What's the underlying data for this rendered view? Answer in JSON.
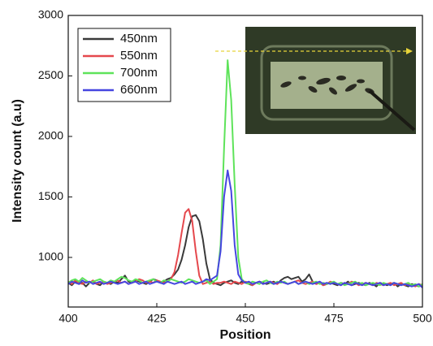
{
  "chart_data": {
    "type": "line",
    "x_label": "Position",
    "y_label": "Intensity count (a.u)",
    "xlim": [
      400,
      500
    ],
    "ylim": [
      590,
      3000
    ],
    "xticks": [
      400,
      425,
      450,
      475,
      500
    ],
    "yticks": [
      1000,
      1500,
      2000,
      2500,
      3000
    ],
    "grid": false,
    "legend": "upper left",
    "x": [
      400,
      401,
      402,
      403,
      404,
      405,
      406,
      407,
      408,
      409,
      410,
      411,
      412,
      413,
      414,
      415,
      416,
      417,
      418,
      419,
      420,
      421,
      422,
      423,
      424,
      425,
      426,
      427,
      428,
      429,
      430,
      431,
      432,
      433,
      434,
      435,
      436,
      437,
      438,
      439,
      440,
      441,
      442,
      443,
      444,
      445,
      446,
      447,
      448,
      449,
      450,
      451,
      452,
      453,
      454,
      455,
      456,
      457,
      458,
      459,
      460,
      461,
      462,
      463,
      464,
      465,
      466,
      467,
      468,
      469,
      470,
      471,
      472,
      473,
      474,
      475,
      476,
      477,
      478,
      479,
      480,
      481,
      482,
      483,
      484,
      485,
      486,
      487,
      488,
      489,
      490,
      491,
      492,
      493,
      494,
      495,
      496,
      497,
      498,
      499,
      500
    ],
    "series": [
      {
        "name": "450nm",
        "color": "#3a3a3a",
        "values": [
          790,
          770,
          800,
          780,
          790,
          760,
          790,
          800,
          780,
          770,
          800,
          790,
          780,
          800,
          790,
          820,
          850,
          800,
          790,
          810,
          800,
          790,
          780,
          800,
          820,
          810,
          790,
          800,
          820,
          830,
          860,
          900,
          980,
          1100,
          1250,
          1340,
          1350,
          1300,
          1150,
          950,
          820,
          790,
          780,
          770,
          790,
          800,
          810,
          790,
          780,
          800,
          790,
          780,
          770,
          790,
          800,
          790,
          780,
          790,
          800,
          780,
          810,
          830,
          840,
          820,
          830,
          840,
          800,
          820,
          860,
          800,
          780,
          790,
          770,
          780,
          790,
          780,
          770,
          790,
          780,
          800,
          770,
          780,
          790,
          780,
          770,
          790,
          780,
          760,
          790,
          780,
          770,
          780,
          790,
          760,
          780,
          770,
          760,
          780,
          770,
          760,
          770
        ]
      },
      {
        "name": "550nm",
        "color": "#e5484d",
        "values": [
          800,
          780,
          810,
          790,
          780,
          800,
          790,
          810,
          780,
          790,
          800,
          780,
          790,
          800,
          810,
          790,
          800,
          780,
          790,
          800,
          820,
          810,
          790,
          800,
          790,
          810,
          800,
          790,
          800,
          820,
          880,
          1020,
          1200,
          1370,
          1400,
          1300,
          1050,
          850,
          780,
          790,
          800,
          780,
          790,
          790,
          800,
          790,
          780,
          800,
          790,
          780,
          800,
          790,
          770,
          790,
          800,
          780,
          790,
          800,
          790,
          780,
          800,
          790,
          780,
          790,
          800,
          810,
          790,
          780,
          790,
          800,
          780,
          790,
          770,
          780,
          800,
          790,
          780,
          770,
          790,
          780,
          800,
          790,
          770,
          780,
          790,
          780,
          770,
          790,
          780,
          770,
          780,
          790,
          770,
          780,
          790,
          770,
          780,
          770,
          760,
          780,
          770
        ]
      },
      {
        "name": "700nm",
        "color": "#5ee35a",
        "values": [
          790,
          810,
          820,
          800,
          830,
          810,
          790,
          800,
          810,
          820,
          800,
          790,
          810,
          800,
          820,
          840,
          830,
          810,
          800,
          820,
          810,
          790,
          800,
          810,
          820,
          800,
          790,
          810,
          800,
          820,
          810,
          800,
          790,
          800,
          820,
          810,
          800,
          790,
          800,
          810,
          780,
          800,
          820,
          1100,
          1900,
          2630,
          2300,
          1600,
          1000,
          820,
          790,
          780,
          800,
          790,
          780,
          800,
          810,
          790,
          780,
          800,
          790,
          800,
          780,
          790,
          800,
          780,
          790,
          800,
          780,
          790,
          800,
          780,
          790,
          780,
          790,
          800,
          780,
          790,
          770,
          780,
          790,
          800,
          780,
          790,
          770,
          780,
          790,
          780,
          770,
          790,
          780,
          770,
          790,
          780,
          770,
          780,
          790,
          770,
          780,
          760,
          780
        ]
      },
      {
        "name": "660nm",
        "color": "#4646e0",
        "values": [
          780,
          800,
          790,
          780,
          810,
          790,
          800,
          780,
          790,
          800,
          780,
          790,
          800,
          790,
          780,
          790,
          800,
          780,
          790,
          800,
          780,
          790,
          800,
          780,
          790,
          800,
          790,
          780,
          800,
          790,
          780,
          790,
          800,
          780,
          790,
          800,
          780,
          790,
          800,
          820,
          810,
          830,
          850,
          1050,
          1500,
          1720,
          1550,
          1100,
          860,
          810,
          790,
          800,
          780,
          790,
          800,
          780,
          790,
          800,
          780,
          790,
          800,
          790,
          780,
          790,
          800,
          780,
          790,
          800,
          790,
          780,
          790,
          800,
          780,
          790,
          780,
          790,
          780,
          770,
          790,
          780,
          770,
          790,
          780,
          770,
          790,
          780,
          770,
          780,
          790,
          770,
          780,
          770,
          790,
          780,
          770,
          780,
          770,
          760,
          770,
          780,
          750
        ]
      }
    ]
  }
}
